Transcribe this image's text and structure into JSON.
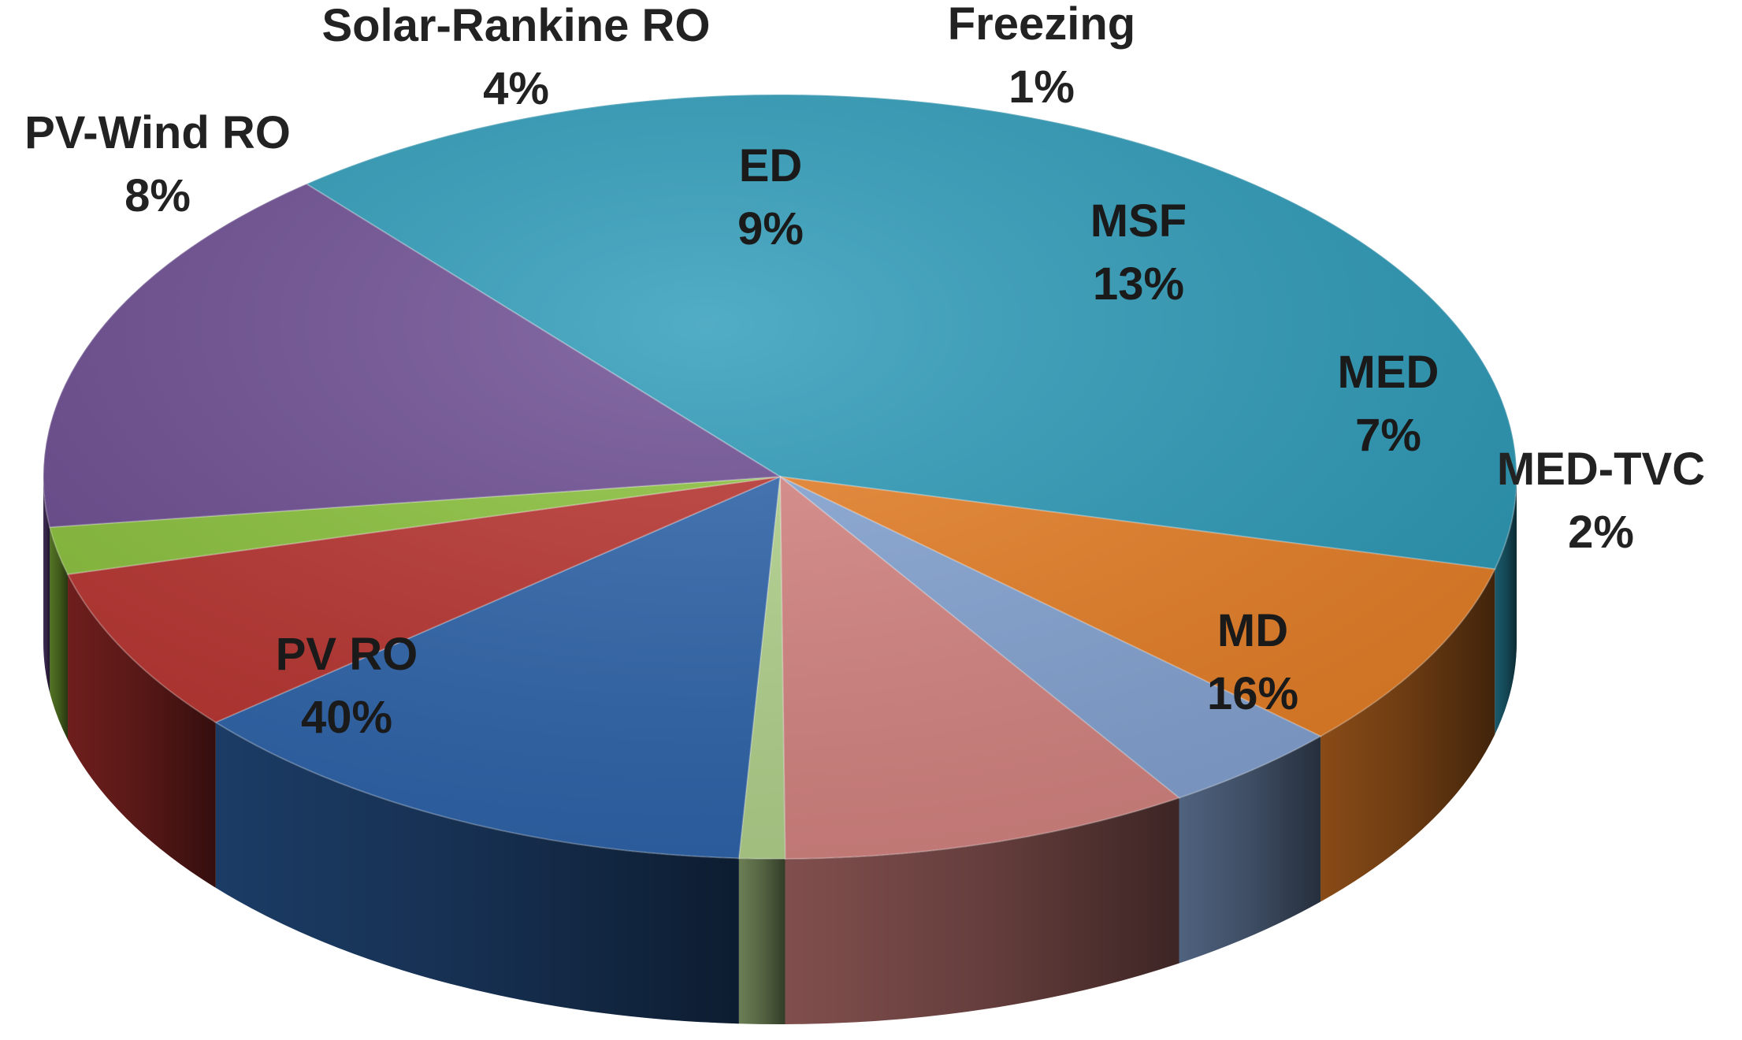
{
  "chart_data": {
    "type": "pie",
    "style": "3d",
    "title": "",
    "slices": [
      {
        "label": "PV RO",
        "value": 40,
        "pct_label": "40%",
        "color": "#2b9ab8"
      },
      {
        "label": "PV-Wind RO",
        "value": 8,
        "pct_label": "8%",
        "color": "#e98026"
      },
      {
        "label": "Solar-Rankine RO",
        "value": 4,
        "pct_label": "4%",
        "color": "#86a6d6"
      },
      {
        "label": "ED",
        "value": 9,
        "pct_label": "9%",
        "color": "#d98683"
      },
      {
        "label": "Freezing",
        "value": 1,
        "pct_label": "1%",
        "color": "#b5d68e"
      },
      {
        "label": "MSF",
        "value": 13,
        "pct_label": "13%",
        "color": "#2e65ad"
      },
      {
        "label": "MED",
        "value": 7,
        "pct_label": "7%",
        "color": "#bb3430"
      },
      {
        "label": "MED-TVC",
        "value": 2,
        "pct_label": "2%",
        "color": "#8cc43c"
      },
      {
        "label": "MD",
        "value": 16,
        "pct_label": "16%",
        "color": "#6c4c92"
      }
    ]
  }
}
